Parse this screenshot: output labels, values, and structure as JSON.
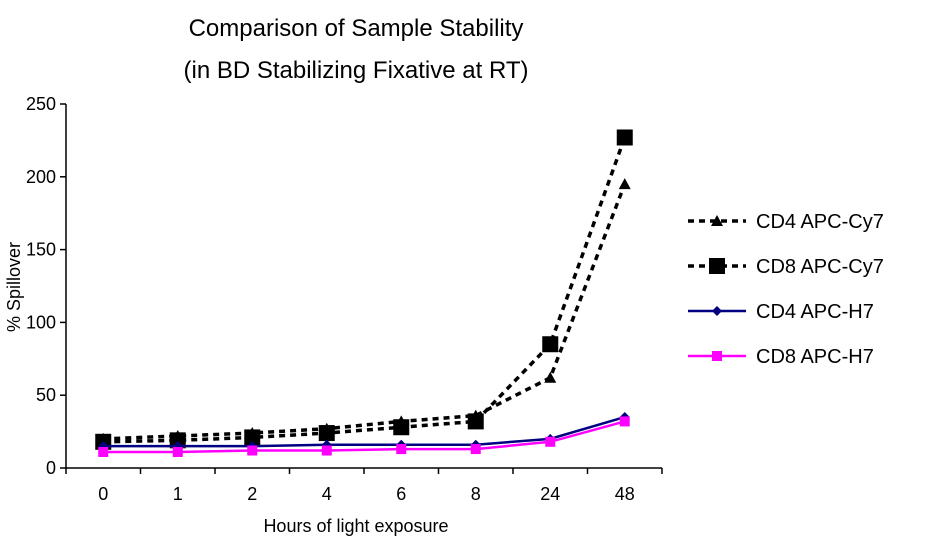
{
  "chart_data": {
    "type": "line",
    "title": "Comparison of Sample Stability",
    "subtitle": "(in BD Stabilizing Fixative at RT)",
    "xlabel": "Hours of light exposure",
    "ylabel": "% Spillover",
    "categories": [
      "0",
      "1",
      "2",
      "4",
      "6",
      "8",
      "24",
      "48"
    ],
    "ylim": [
      0,
      250
    ],
    "yticks": [
      0,
      50,
      100,
      150,
      200,
      250
    ],
    "grid": false,
    "legend_position": "right",
    "series": [
      {
        "name": "CD4 APC-Cy7",
        "values": [
          20,
          22,
          24,
          27,
          32,
          36,
          62,
          195
        ],
        "color": "#000000",
        "line_style": "dashed",
        "marker": "triangle"
      },
      {
        "name": "CD8 APC-Cy7",
        "values": [
          18,
          19,
          21,
          24,
          28,
          32,
          85,
          227
        ],
        "color": "#000000",
        "line_style": "dashed",
        "marker": "square"
      },
      {
        "name": "CD4 APC-H7",
        "values": [
          15,
          15,
          15,
          16,
          16,
          16,
          20,
          35
        ],
        "color": "#000080",
        "line_style": "solid",
        "marker": "diamond"
      },
      {
        "name": "CD8 APC-H7",
        "values": [
          11,
          11,
          12,
          12,
          13,
          13,
          18,
          32
        ],
        "color": "#ff00ff",
        "line_style": "solid",
        "marker": "square-small"
      }
    ]
  }
}
